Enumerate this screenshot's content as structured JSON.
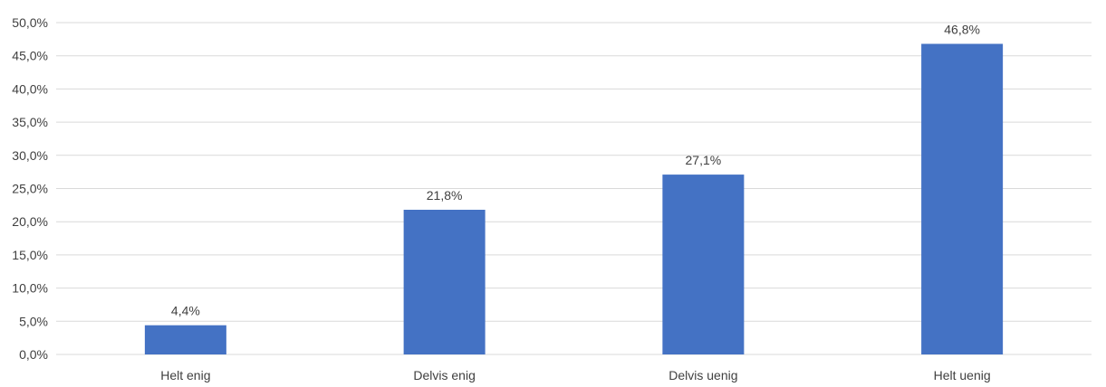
{
  "chart_data": {
    "type": "bar",
    "title": "",
    "categories": [
      "Helt enig",
      "Delvis enig",
      "Delvis uenig",
      "Helt uenig"
    ],
    "values": [
      4.4,
      21.8,
      27.1,
      46.8
    ],
    "value_labels": [
      "4,4%",
      "21,8%",
      "27,1%",
      "46,8%"
    ],
    "ylim": [
      0,
      50
    ],
    "y_ticks": [
      0,
      5,
      10,
      15,
      20,
      25,
      30,
      35,
      40,
      45,
      50
    ],
    "y_tick_labels": [
      "0,0%",
      "5,0%",
      "10,0%",
      "15,0%",
      "20,0%",
      "25,0%",
      "30,0%",
      "35,0%",
      "40,0%",
      "45,0%",
      "50,0%"
    ],
    "xlabel": "",
    "ylabel": "",
    "grid": true,
    "legend": "none",
    "bar_color": "#4472C4",
    "grid_color": "#D9D9D9"
  }
}
